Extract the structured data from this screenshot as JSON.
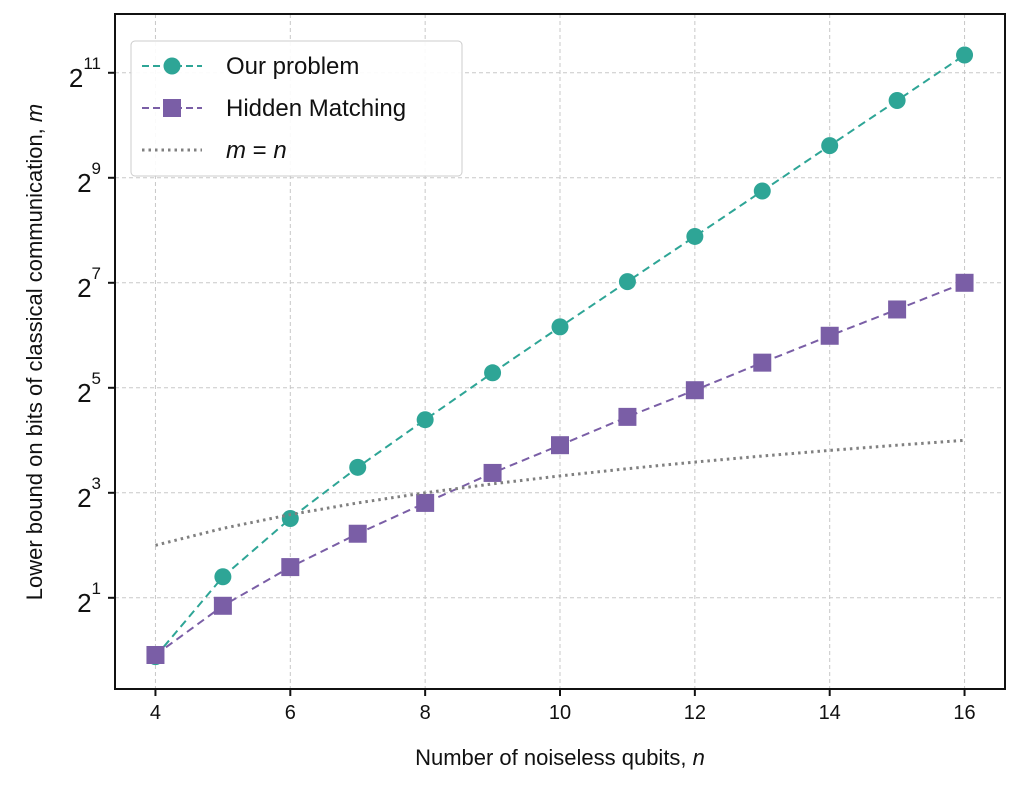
{
  "chart_data": {
    "type": "line",
    "title": "",
    "xlabel": "Number of noiseless qubits, ",
    "xlabel_var": "n",
    "ylabel": "Lower bound on bits of classical communication, ",
    "ylabel_var": "m",
    "x_scale": "linear",
    "y_scale": "log2",
    "xlim": [
      3.4,
      16.6
    ],
    "ylim": [
      0.6,
      4450
    ],
    "grid": true,
    "legend_position": "top-left",
    "x_ticks": [
      4,
      6,
      8,
      10,
      12,
      14,
      16
    ],
    "x_tick_labels": [
      "4",
      "6",
      "8",
      "10",
      "12",
      "14",
      "16"
    ],
    "y_ticks": [
      2,
      8,
      32,
      128,
      512,
      2048
    ],
    "y_tick_base": "2",
    "y_tick_exponents": [
      "1",
      "3",
      "5",
      "7",
      "9",
      "11"
    ],
    "x": [
      4,
      5,
      6,
      7,
      8,
      9,
      10,
      11,
      12,
      13,
      14,
      15,
      16
    ],
    "series": [
      {
        "name": "Our problem",
        "color": "#2ea596",
        "marker": "circle",
        "linestyle": "dashed",
        "values": [
          0.92,
          2.64,
          5.7,
          11.2,
          21,
          39,
          71.5,
          130,
          236,
          430,
          783,
          1420,
          2590
        ]
      },
      {
        "name": "Hidden Matching",
        "color": "#7a5ea6",
        "marker": "square",
        "linestyle": "dashed",
        "values": [
          0.94,
          1.8,
          3.0,
          4.66,
          7.0,
          10.4,
          15,
          21.8,
          31,
          44.6,
          63.6,
          90,
          128
        ]
      },
      {
        "name": "m = n",
        "name_lhs": "m",
        "name_op": " = ",
        "name_rhs": "n",
        "color": "#808080",
        "marker": "none",
        "linestyle": "dotted",
        "values": [
          4,
          5,
          6,
          7,
          8,
          9,
          10,
          11,
          12,
          13,
          14,
          15,
          16
        ]
      }
    ]
  }
}
